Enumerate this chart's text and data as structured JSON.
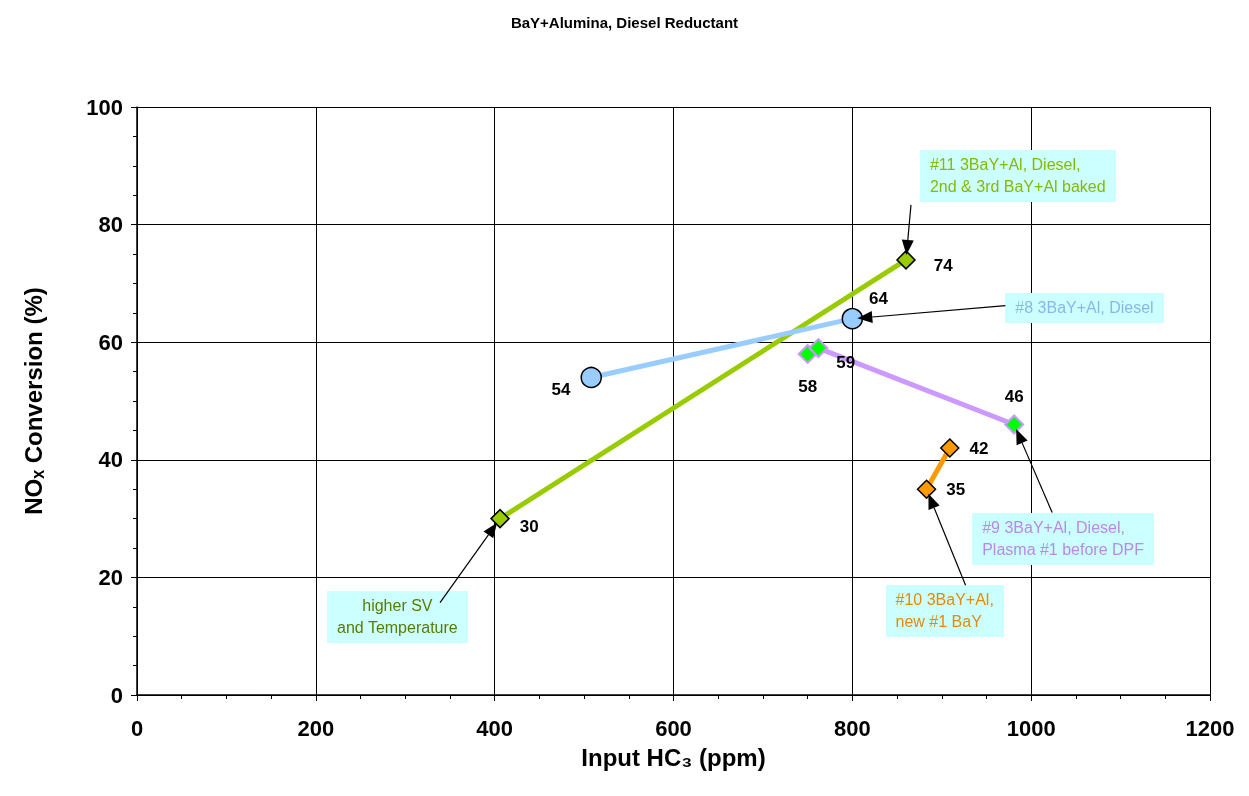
{
  "chart_data": {
    "type": "line",
    "title": "BaY+Alumina, Diesel Reductant",
    "xlabel": "Input HC₃ (ppm)",
    "ylabel": "NOₓ Conversion (%)",
    "series": [
      {
        "name": "#11 3BaY+Al, Diesel,\n2nd & 3rd BaY+Al baked",
        "color": "#99cc00",
        "marker": "diamond",
        "x": [
          406,
          860
        ],
        "values": [
          30,
          74
        ]
      },
      {
        "name": "#8 3BaY+Al, Diesel",
        "color": "#99ccff",
        "marker": "circle",
        "x": [
          508,
          800
        ],
        "values": [
          54,
          64
        ]
      },
      {
        "name": "#9 3BaY+Al, Diesel,\nPlasma #1 before DPF",
        "color": "#cc99ff",
        "colors": [
          "#00ff00",
          "#00ff00",
          "#00ff00"
        ],
        "marker": "diamond",
        "x": [
          750,
          762,
          981
        ],
        "values": [
          58,
          59,
          46
        ]
      },
      {
        "name": "#10 3BaY+Al,\nnew #1 BaY",
        "color": "#ff9900",
        "marker": "diamond",
        "x": [
          883,
          909
        ],
        "values": [
          35,
          42
        ]
      }
    ],
    "annotations": [
      "higher SV\nand Temperature"
    ],
    "data_labels": true,
    "xlim": [
      0,
      1200
    ],
    "xticks": [
      0,
      200,
      400,
      600,
      800,
      1000,
      1200
    ],
    "ylim": [
      0,
      100
    ],
    "yticks": [
      0,
      20,
      40,
      60,
      80,
      100
    ],
    "grid": true,
    "legend": false
  }
}
